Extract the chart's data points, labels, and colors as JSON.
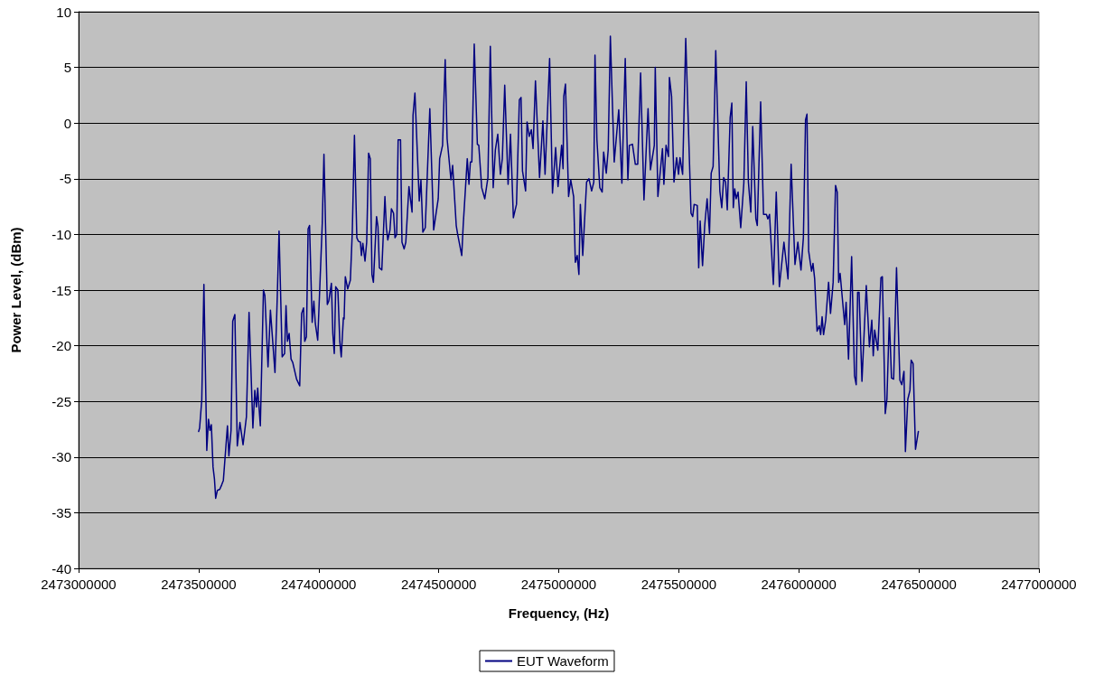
{
  "chart_data": {
    "type": "line",
    "xlabel": "Frequency, (Hz)",
    "ylabel": "Power Level, (dBm)",
    "xlim": [
      2473000000,
      2477000000
    ],
    "xticks": [
      2473000000,
      2473500000,
      2474000000,
      2474500000,
      2475000000,
      2475500000,
      2476000000,
      2476500000,
      2477000000
    ],
    "ylim": [
      -40,
      10
    ],
    "yticks": [
      -40,
      -35,
      -30,
      -25,
      -20,
      -15,
      -10,
      -5,
      0,
      5,
      10
    ],
    "grid": "y",
    "legend": "bottom",
    "marker": "none",
    "line_style": "solid",
    "x": [
      2473500000,
      2473504000,
      2473513000,
      2473522000,
      2473534000,
      2473541000,
      2473547000,
      2473553000,
      2473560000,
      2473566000,
      2473571000,
      2473578000,
      2473588000,
      2473596000,
      2473603000,
      2473620000,
      2473626000,
      2473635000,
      2473642000,
      2473651000,
      2473661000,
      2473672000,
      2473685000,
      2473699000,
      2473710000,
      2473726000,
      2473734000,
      2473741000,
      2473746000,
      2473757000,
      2473770000,
      2473776000,
      2473789000,
      2473799000,
      2473818000,
      2473827000,
      2473835000,
      2473848000,
      2473858000,
      2473864000,
      2473870000,
      2473877000,
      2473885000,
      2473892000,
      2473908000,
      2473921000,
      2473929000,
      2473937000,
      2473942000,
      2473949000,
      2473956000,
      2473962000,
      2473973000,
      2473980000,
      2473986000,
      2473996000,
      2474005000,
      2474015000,
      2474022000,
      2474036000,
      2474042000,
      2474053000,
      2474059000,
      2474065000,
      2474071000,
      2474080000,
      2474088000,
      2474094000,
      2474103000,
      2474106000,
      2474111000,
      2474121000,
      2474132000,
      2474140000,
      2474149000,
      2474159000,
      2474165000,
      2474174000,
      2474178000,
      2474184000,
      2474193000,
      2474200000,
      2474208000,
      2474215000,
      2474222000,
      2474228000,
      2474241000,
      2474247000,
      2474253000,
      2474263000,
      2474276000,
      2474282000,
      2474288000,
      2474297000,
      2474303000,
      2474312000,
      2474318000,
      2474325000,
      2474331000,
      2474341000,
      2474347000,
      2474356000,
      2474363000,
      2474376000,
      2474389000,
      2474393000,
      2474401000,
      2474419000,
      2474426000,
      2474434000,
      2474444000,
      2474463000,
      2474479000,
      2474498000,
      2474504000,
      2474516000,
      2474527000,
      2474535000,
      2474551000,
      2474558000,
      2474573000,
      2474579000,
      2474596000,
      2474602000,
      2474619000,
      2474626000,
      2474632000,
      2474638000,
      2474648000,
      2474661000,
      2474667000,
      2474679000,
      2474692000,
      2474705000,
      2474715000,
      2474727000,
      2474736000,
      2474746000,
      2474757000,
      2474765000,
      2474775000,
      2474789000,
      2474799000,
      2474811000,
      2474824000,
      2474836000,
      2474843000,
      2474849000,
      2474862000,
      2474868000,
      2474877000,
      2474886000,
      2474893000,
      2474903000,
      2474920000,
      2474934000,
      2474943000,
      2474962000,
      2474974000,
      2474987000,
      2474997000,
      2475012000,
      2475018000,
      2475021000,
      2475028000,
      2475041000,
      2475050000,
      2475062000,
      2475069000,
      2475077000,
      2475084000,
      2475090000,
      2475100000,
      2475116000,
      2475126000,
      2475137000,
      2475146000,
      2475151000,
      2475159000,
      2475171000,
      2475181000,
      2475187000,
      2475198000,
      2475206000,
      2475215000,
      2475231000,
      2475250000,
      2475263000,
      2475277000,
      2475288000,
      2475294000,
      2475307000,
      2475319000,
      2475329000,
      2475341000,
      2475355000,
      2475372000,
      2475382000,
      2475398000,
      2475402000,
      2475413000,
      2475432000,
      2475438000,
      2475447000,
      2475457000,
      2475461000,
      2475470000,
      2475480000,
      2475491000,
      2475499000,
      2475505000,
      2475516000,
      2475529000,
      2475551000,
      2475558000,
      2475564000,
      2475577000,
      2475583000,
      2475589000,
      2475599000,
      2475608000,
      2475618000,
      2475628000,
      2475635000,
      2475643000,
      2475654000,
      2475671000,
      2475679000,
      2475687000,
      2475695000,
      2475702000,
      2475714000,
      2475721000,
      2475727000,
      2475733000,
      2475739000,
      2475747000,
      2475758000,
      2475771000,
      2475781000,
      2475790000,
      2475800000,
      2475808000,
      2475821000,
      2475827000,
      2475841000,
      2475853000,
      2475865000,
      2475871000,
      2475878000,
      2475894000,
      2475906000,
      2475919000,
      2475938000,
      2475955000,
      2475968000,
      2475984000,
      2475996000,
      2476009000,
      2476019000,
      2476028000,
      2476034000,
      2476041000,
      2476053000,
      2476059000,
      2476066000,
      2476076000,
      2476085000,
      2476091000,
      2476097000,
      2476103000,
      2476112000,
      2476124000,
      2476132000,
      2476143000,
      2476153000,
      2476160000,
      2476166000,
      2476172000,
      2476191000,
      2476197000,
      2476207000,
      2476220000,
      2476232000,
      2476239000,
      2476245000,
      2476251000,
      2476263000,
      2476281000,
      2476294000,
      2476304000,
      2476310000,
      2476316000,
      2476329000,
      2476342000,
      2476348000,
      2476360000,
      2476367000,
      2476377000,
      2476386000,
      2476395000,
      2476407000,
      2476421000,
      2476429000,
      2476438000,
      2476444000,
      2476454000,
      2476463000,
      2476468000,
      2476476000,
      2476486000,
      2476498000
    ],
    "series": [
      {
        "name": "EUT Waveform",
        "color": "#000080",
        "values": [
          -27.7,
          -27.4,
          -24.9,
          -14.5,
          -29.4,
          -26.6,
          -27.6,
          -27.1,
          -30.9,
          -32,
          -33.7,
          -33,
          -32.9,
          -32.5,
          -32.1,
          -27.2,
          -29.9,
          -27.6,
          -17.8,
          -17.2,
          -29,
          -26.9,
          -28.9,
          -26.4,
          -17,
          -27.4,
          -24,
          -25.5,
          -23.8,
          -27.2,
          -15,
          -15.5,
          -21.9,
          -16.8,
          -22.4,
          -16,
          -9.7,
          -21,
          -20.7,
          -16.4,
          -19.6,
          -18.9,
          -21.2,
          -21.5,
          -23,
          -23.6,
          -17.1,
          -16.6,
          -19.6,
          -19.2,
          -9.5,
          -9.2,
          -17.9,
          -16,
          -18,
          -19.5,
          -14.6,
          -9,
          -2.8,
          -16.3,
          -16,
          -14.4,
          -18.9,
          -20.7,
          -14.7,
          -15,
          -19.6,
          -21,
          -17.5,
          -17.6,
          -13.8,
          -14.9,
          -14.1,
          -9.8,
          -1.1,
          -10.3,
          -10.6,
          -10.7,
          -11.9,
          -10.8,
          -12.4,
          -10.7,
          -2.7,
          -3.2,
          -13.6,
          -14.3,
          -8.4,
          -9.3,
          -13,
          -13.2,
          -6.6,
          -9.4,
          -10.5,
          -9.6,
          -7.7,
          -8.1,
          -10.3,
          -10,
          -1.5,
          -1.5,
          -10.7,
          -11.3,
          -10.7,
          -5.7,
          -8,
          0.7,
          2.7,
          -7,
          -5.1,
          -9.8,
          -9.4,
          1.3,
          -9.6,
          -6.8,
          -3.2,
          -2,
          5.7,
          -1.4,
          -5.1,
          -3.8,
          -9.2,
          -10,
          -11.9,
          -9.2,
          -3.2,
          -5.5,
          -3.5,
          -3.5,
          7.1,
          -1.9,
          -2,
          -5.8,
          -6.8,
          -4.9,
          6.9,
          -5.8,
          -2.4,
          -1,
          -4.6,
          -3.2,
          3.4,
          -5.5,
          -1,
          -8.5,
          -7.3,
          2.1,
          2.3,
          -4.3,
          -6.1,
          0.1,
          -1.2,
          -0.6,
          -2.3,
          3.8,
          -4.9,
          0.2,
          -4.6,
          5.8,
          -6.3,
          -2.2,
          -5.7,
          -2,
          -4.1,
          2.4,
          3.5,
          -6.6,
          -5.1,
          -6.6,
          -12.5,
          -11.9,
          -13.6,
          -7.3,
          -11.9,
          -5.3,
          -5,
          -6.1,
          -5.3,
          6.1,
          -1.5,
          -5.8,
          -6.2,
          -2.6,
          -4.5,
          -2.4,
          7.8,
          -3.5,
          1.2,
          -5.4,
          5.8,
          -5.1,
          -2,
          -1.9,
          -3.7,
          -3.7,
          4.5,
          -6.9,
          1.3,
          -4.2,
          -2,
          5,
          -6.6,
          -2.3,
          -5.5,
          -2,
          -3,
          4.1,
          2.4,
          -5.3,
          -3.1,
          -4.6,
          -3.1,
          -4.6,
          7.6,
          -8.1,
          -8.4,
          -7.3,
          -7.4,
          -13,
          -8.8,
          -12.8,
          -9.2,
          -6.8,
          -9.9,
          -4.5,
          -3.9,
          6.5,
          -6.1,
          -7.6,
          -4.9,
          -5.3,
          -7.8,
          0.5,
          1.8,
          -7.6,
          -5.9,
          -6.8,
          -6.2,
          -9.4,
          -5.4,
          3.7,
          -5.3,
          -8,
          -0.3,
          -8.6,
          -9.2,
          1.9,
          -8.2,
          -8.2,
          -8.6,
          -8.2,
          -14.5,
          -6.2,
          -14.7,
          -10.7,
          -14,
          -3.7,
          -12.7,
          -10.7,
          -13.2,
          -10.3,
          0.3,
          0.8,
          -11.5,
          -13.3,
          -12.6,
          -14,
          -18.7,
          -18.2,
          -19,
          -17.4,
          -19,
          -17.7,
          -14.3,
          -17.1,
          -14.3,
          -5.6,
          -6.2,
          -14.3,
          -13.5,
          -18.1,
          -16.1,
          -21.2,
          -12,
          -22.7,
          -23.5,
          -15.2,
          -15.2,
          -23.2,
          -14.6,
          -20.1,
          -17.7,
          -20.9,
          -18.6,
          -20.4,
          -13.9,
          -13.8,
          -26.1,
          -24.8,
          -17.5,
          -22.9,
          -23,
          -13,
          -23.1,
          -23.5,
          -22.3,
          -29.5,
          -24.8,
          -24,
          -21.3,
          -21.6,
          -29.3,
          -27.7
        ]
      }
    ]
  }
}
